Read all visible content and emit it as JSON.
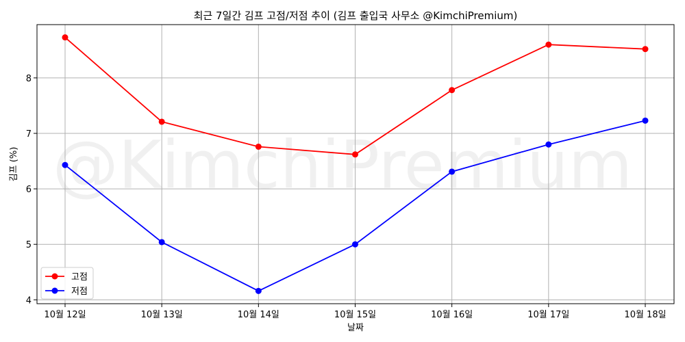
{
  "chart_data": {
    "type": "line",
    "title": "최근 7일간 김프 고점/저점 추이 (김프 출입국 사무소 @KimchiPremium)",
    "xlabel": "날짜",
    "ylabel": "김프 (%)",
    "categories": [
      "10월 12일",
      "10월 13일",
      "10월 14일",
      "10월 15일",
      "10월 16일",
      "10월 17일",
      "10월 18일"
    ],
    "series": [
      {
        "name": "고점",
        "color": "#ff0000",
        "values": [
          8.73,
          7.21,
          6.76,
          6.62,
          7.78,
          8.6,
          8.52
        ]
      },
      {
        "name": "저점",
        "color": "#0000ff",
        "values": [
          6.43,
          5.04,
          4.16,
          5.0,
          6.31,
          6.8,
          7.23
        ]
      }
    ],
    "yticks": [
      4,
      5,
      6,
      7,
      8
    ],
    "ylim": [
      3.93,
      8.96
    ],
    "grid": true,
    "legend_position": "lower-left",
    "watermark": "@KimchiPremium"
  }
}
